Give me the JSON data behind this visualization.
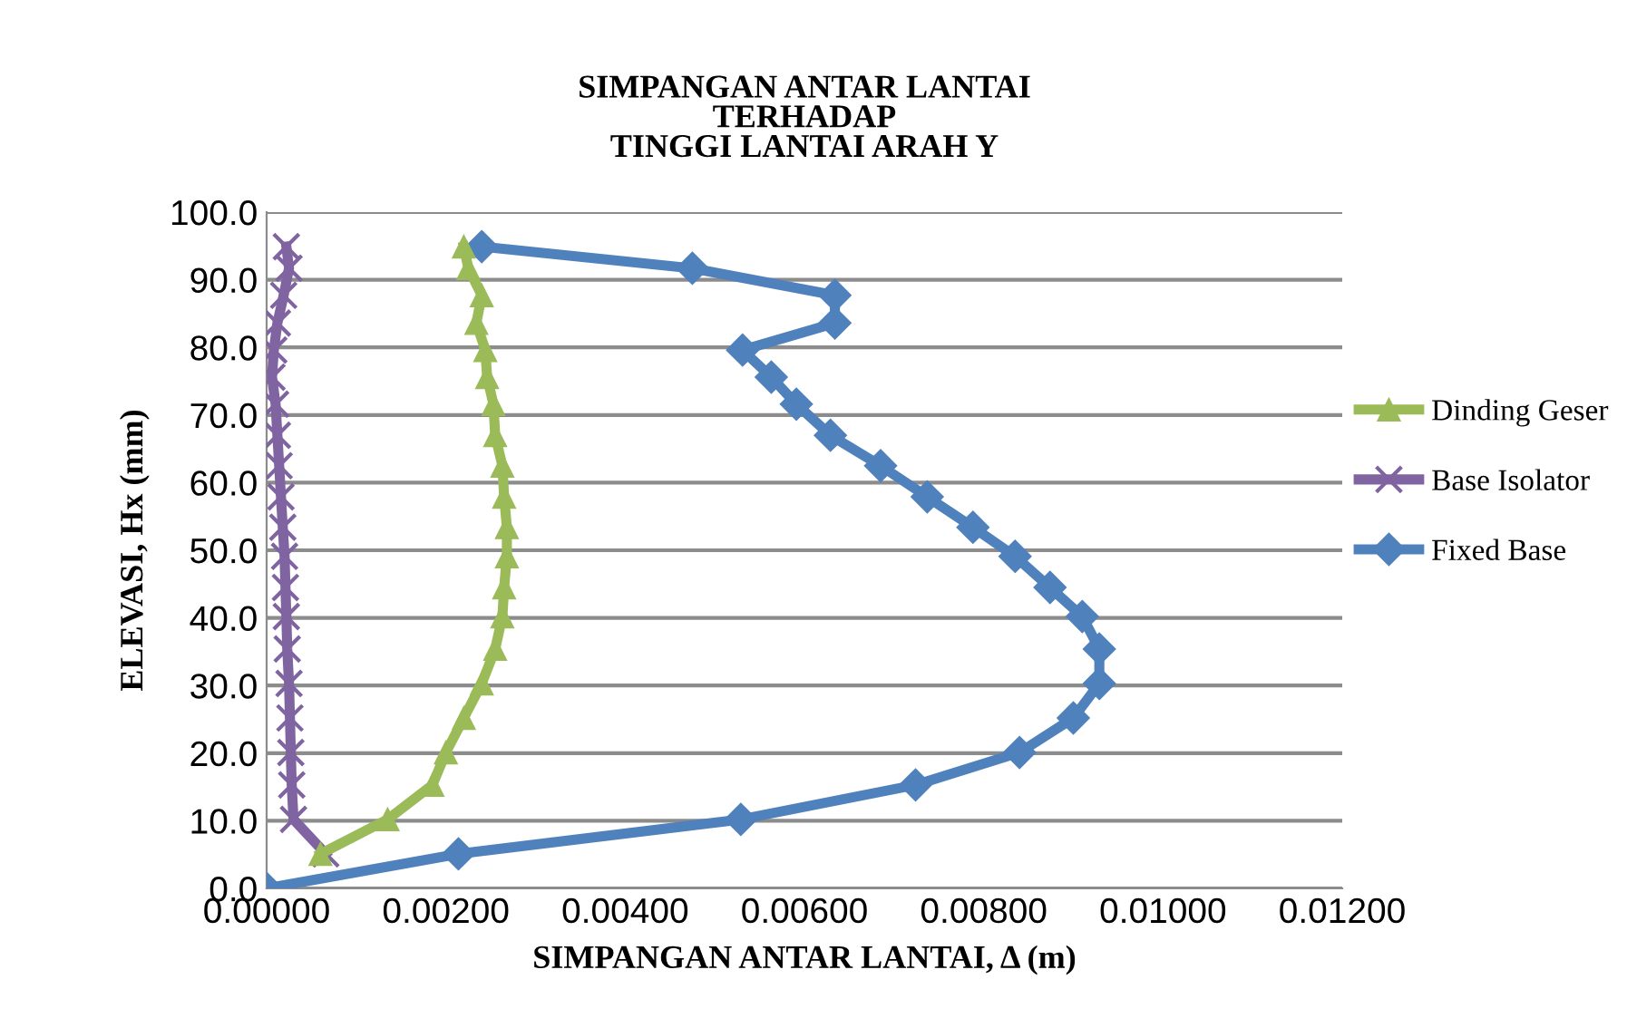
{
  "chart_data": {
    "type": "line",
    "title": "SIMPANGAN ANTAR LANTAI\nTERHADAP\nTINGGI LANTAI ARAH Y",
    "xlabel": "SIMPANGAN ANTAR LANTAI, Δ (m)",
    "ylabel": "ELEVASI, Hx (mm)",
    "xlim": [
      0,
      0.012
    ],
    "ylim": [
      0,
      100
    ],
    "xticks": [
      {
        "value": 0,
        "label": "0.00000"
      },
      {
        "value": 0.002,
        "label": "0.00200"
      },
      {
        "value": 0.004,
        "label": "0.00400"
      },
      {
        "value": 0.006,
        "label": "0.00600"
      },
      {
        "value": 0.008,
        "label": "0.00800"
      },
      {
        "value": 0.01,
        "label": "0.01000"
      },
      {
        "value": 0.012,
        "label": "0.01200"
      }
    ],
    "yticks": [
      {
        "value": 0,
        "label": "0.0"
      },
      {
        "value": 10,
        "label": "10.0"
      },
      {
        "value": 20,
        "label": "20.0"
      },
      {
        "value": 30,
        "label": "30.0"
      },
      {
        "value": 40,
        "label": "40.0"
      },
      {
        "value": 50,
        "label": "50.0"
      },
      {
        "value": 60,
        "label": "60.0"
      },
      {
        "value": 70,
        "label": "70.0"
      },
      {
        "value": 80,
        "label": "80.0"
      },
      {
        "value": 90,
        "label": "90.0"
      },
      {
        "value": 100,
        "label": "100.0"
      }
    ],
    "grid": "y",
    "legend": "right",
    "series": [
      {
        "name": "Dinding Geser",
        "color": "#9bbb59",
        "marker": "triangle",
        "x": [
          0.0006,
          0.00135,
          0.00185,
          0.002,
          0.0022,
          0.0024,
          0.00255,
          0.00263,
          0.00265,
          0.00268,
          0.00268,
          0.00265,
          0.00263,
          0.00255,
          0.00253,
          0.00246,
          0.00244,
          0.00234,
          0.0024,
          0.00225,
          0.0022
        ],
        "values": [
          5.1,
          10.2,
          15.3,
          20.1,
          25.2,
          30.3,
          35.4,
          40.2,
          44.5,
          49.1,
          53.4,
          57.9,
          62.5,
          67.0,
          71.6,
          75.6,
          79.6,
          83.6,
          87.7,
          91.7,
          94.9
        ]
      },
      {
        "name": "Base Isolator",
        "color": "#8064a2",
        "marker": "cross",
        "x": [
          0.00066,
          0.0003,
          0.00028,
          0.00027,
          0.00026,
          0.00025,
          0.00023,
          0.00022,
          0.00021,
          0.0002,
          0.00018,
          0.00016,
          0.00014,
          0.00012,
          0.0001,
          6e-05,
          8e-05,
          0.00012,
          0.00019,
          0.00025,
          0.00022
        ],
        "values": [
          5.1,
          10.2,
          15.3,
          20.1,
          25.2,
          30.3,
          35.4,
          40.2,
          44.5,
          49.1,
          53.4,
          57.9,
          62.5,
          67.0,
          71.6,
          75.6,
          79.6,
          83.6,
          87.7,
          91.7,
          94.9
        ]
      },
      {
        "name": "Fixed Base",
        "color": "#4f81bd",
        "marker": "diamond",
        "x": [
          0,
          0.00214,
          0.00529,
          0.00724,
          0.0084,
          0.009,
          0.00929,
          0.00929,
          0.0091,
          0.00874,
          0.00835,
          0.00788,
          0.00737,
          0.00685,
          0.00629,
          0.00591,
          0.00563,
          0.00531,
          0.00634,
          0.00634,
          0.00475,
          0.0024
        ],
        "values": [
          0,
          5.1,
          10.2,
          15.3,
          20.1,
          25.2,
          30.3,
          35.4,
          40.2,
          44.5,
          49.1,
          53.4,
          57.9,
          62.5,
          67.0,
          71.6,
          75.6,
          79.6,
          83.6,
          87.7,
          91.7,
          94.9
        ]
      }
    ]
  }
}
